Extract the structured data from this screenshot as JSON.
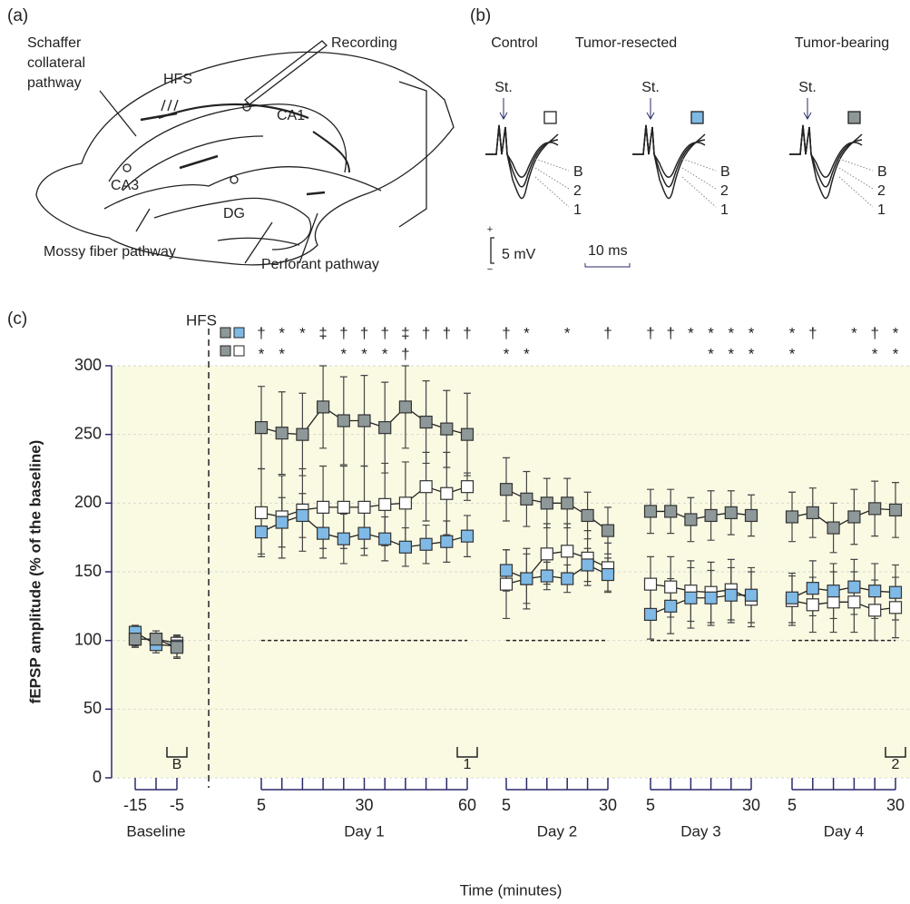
{
  "panel_a": {
    "label": "(a)",
    "texts": [
      "Schaffer",
      "collateral",
      "pathway",
      "HFS",
      "Recording",
      "CA1",
      "CA3",
      "DG",
      "Mossy fiber pathway",
      "Perforant pathway"
    ]
  },
  "panel_b": {
    "label": "(b)",
    "stimulus": "St.",
    "trace_labels": [
      "B",
      "2",
      "1"
    ],
    "scale_y": "5 mV",
    "scale_x": "10 ms",
    "scale_plus": "+",
    "scale_minus": "−"
  },
  "chart_data": {
    "type": "line",
    "panel_label": "(c)",
    "hfs_label": "HFS",
    "y_label": "fEPSP amplitude (% of the baseline)",
    "x_label": "Time (minutes)",
    "ylim": [
      0,
      300
    ],
    "yticks": [
      0,
      50,
      100,
      150,
      200,
      250,
      300
    ],
    "grid": true,
    "reference_line": 100,
    "groups": [
      {
        "name": "Baseline",
        "categories": [
          "-15",
          null,
          "-5"
        ],
        "marker_label": "B",
        "significance": [
          [
            null,
            null,
            null
          ],
          [
            null,
            null,
            null
          ]
        ]
      },
      {
        "name": "Day 1",
        "categories": [
          "5",
          null,
          null,
          null,
          null,
          "30",
          null,
          null,
          null,
          null,
          "60"
        ],
        "marker_label": "1",
        "significance": [
          [
            "†",
            "*",
            "*",
            "‡",
            "†",
            "†",
            "†",
            "‡",
            "†",
            "†",
            "†"
          ],
          [
            "*",
            "*",
            null,
            null,
            "*",
            "*",
            "*",
            "†",
            null,
            null,
            null
          ]
        ]
      },
      {
        "name": "Day 2",
        "categories": [
          "5",
          null,
          null,
          null,
          null,
          "30"
        ],
        "marker_label": null,
        "significance": [
          [
            "†",
            "*",
            null,
            "*",
            null,
            "†"
          ],
          [
            "*",
            "*",
            null,
            null,
            null,
            null
          ]
        ]
      },
      {
        "name": "Day 3",
        "categories": [
          "5",
          null,
          null,
          null,
          null,
          "30"
        ],
        "marker_label": null,
        "significance": [
          [
            "†",
            "†",
            "*",
            "*",
            "*",
            "*"
          ],
          [
            null,
            null,
            null,
            "*",
            "*",
            "*"
          ]
        ]
      },
      {
        "name": "Day 4",
        "categories": [
          "5",
          null,
          null,
          null,
          null,
          "30"
        ],
        "marker_label": "2",
        "significance": [
          [
            "*",
            "†",
            null,
            "*",
            "†",
            "*"
          ],
          [
            "*",
            null,
            null,
            null,
            "*",
            "*"
          ]
        ]
      }
    ],
    "series": [
      {
        "name": "Control",
        "color": "#ffffff",
        "values": [
          [
            101,
            101,
            98
          ],
          [
            193,
            190,
            195,
            197,
            197,
            197,
            199,
            200,
            212,
            207,
            212
          ],
          [
            141,
            145,
            163,
            165,
            160,
            153
          ],
          [
            141,
            139,
            136,
            135,
            137,
            130
          ],
          [
            129,
            126,
            128,
            128,
            122,
            124
          ]
        ],
        "errors": [
          [
            6,
            6,
            6
          ],
          [
            32,
            30,
            30,
            30,
            30,
            30,
            30,
            30,
            25,
            30,
            10
          ],
          [
            25,
            22,
            22,
            20,
            20,
            18
          ],
          [
            20,
            22,
            22,
            22,
            22,
            20
          ],
          [
            18,
            20,
            22,
            22,
            22,
            22
          ]
        ]
      },
      {
        "name": "Tumor-resected",
        "color": "#7fb9e6",
        "values": [
          [
            106,
            97,
            96
          ],
          [
            179,
            186,
            191,
            178,
            174,
            178,
            174,
            168,
            170,
            172,
            176
          ],
          [
            151,
            145,
            147,
            145,
            155,
            148
          ],
          [
            119,
            125,
            131,
            131,
            133,
            133
          ],
          [
            131,
            138,
            136,
            139,
            136,
            135
          ]
        ],
        "errors": [
          [
            5,
            6,
            8
          ],
          [
            16,
            18,
            16,
            18,
            18,
            16,
            16,
            14,
            14,
            15,
            15
          ],
          [
            15,
            18,
            10,
            10,
            12,
            12
          ],
          [
            18,
            20,
            22,
            20,
            20,
            20
          ],
          [
            18,
            20,
            20,
            20,
            20,
            20
          ]
        ]
      },
      {
        "name": "Tumor-bearing",
        "color": "#8e9898",
        "values": [
          [
            101,
            101,
            95
          ],
          [
            255,
            251,
            250,
            270,
            260,
            260,
            255,
            270,
            259,
            254,
            250
          ],
          [
            210,
            203,
            200,
            200,
            191,
            180
          ],
          [
            194,
            194,
            188,
            191,
            193,
            191
          ],
          [
            190,
            193,
            182,
            190,
            196,
            195
          ]
        ],
        "errors": [
          [
            5,
            6,
            8
          ],
          [
            30,
            30,
            30,
            30,
            32,
            33,
            33,
            30,
            30,
            28,
            30
          ],
          [
            23,
            20,
            18,
            18,
            17,
            17
          ],
          [
            16,
            16,
            16,
            18,
            16,
            15
          ],
          [
            18,
            18,
            18,
            20,
            20,
            20
          ]
        ]
      }
    ]
  }
}
